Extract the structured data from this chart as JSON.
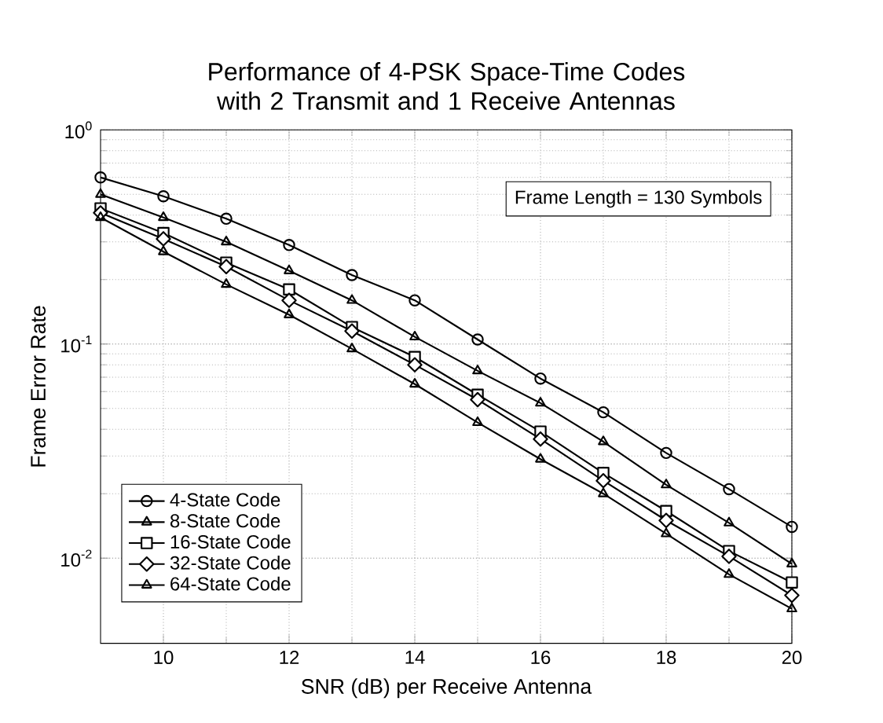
{
  "chart_data": {
    "type": "line",
    "title": "Performance of 4-PSK Space-Time Codes with 2 Transmit and 1 Receive Antennas",
    "xlabel": "SNR (dB) per Receive Antenna",
    "ylabel": "Frame Error Rate",
    "x": [
      9,
      10,
      11,
      12,
      13,
      14,
      15,
      16,
      17,
      18,
      19,
      20
    ],
    "series": [
      {
        "name": "4-State Code",
        "color": "#000000",
        "marker": "circle",
        "values": [
          0.6,
          0.49,
          0.385,
          0.29,
          0.21,
          0.16,
          0.105,
          0.069,
          0.048,
          0.031,
          0.021,
          0.014
        ]
      },
      {
        "name": "8-State Code",
        "color": "#000000",
        "marker": "triangle",
        "values": [
          0.5,
          0.39,
          0.3,
          0.22,
          0.16,
          0.108,
          0.075,
          0.053,
          0.035,
          0.022,
          0.0146,
          0.0094
        ]
      },
      {
        "name": "16-State Code",
        "color": "#000000",
        "marker": "square",
        "values": [
          0.43,
          0.33,
          0.24,
          0.18,
          0.12,
          0.087,
          0.058,
          0.039,
          0.025,
          0.0166,
          0.0108,
          0.0077
        ]
      },
      {
        "name": "32-State Code",
        "color": "#000000",
        "marker": "diamond",
        "values": [
          0.41,
          0.31,
          0.23,
          0.16,
          0.115,
          0.08,
          0.055,
          0.036,
          0.023,
          0.015,
          0.0102,
          0.0067
        ]
      },
      {
        "name": "64-State Code",
        "color": "#000000",
        "marker": "triangle",
        "values": [
          0.39,
          0.27,
          0.19,
          0.137,
          0.095,
          0.065,
          0.043,
          0.029,
          0.02,
          0.013,
          0.0084,
          0.0058
        ]
      }
    ],
    "log": "y",
    "xlim": [
      9,
      20
    ],
    "ylim": [
      0.004,
      1
    ],
    "xticks": [
      10,
      12,
      14,
      16,
      18,
      20
    ],
    "yticks": [
      {
        "value": 0.01,
        "label": "10$^{-2}$"
      },
      {
        "value": 0.1,
        "label": "10$^{-1}$"
      },
      {
        "value": 1,
        "label": "10$^{0}$"
      }
    ],
    "grid": true,
    "legend": "bottom left",
    "line_style": "solid",
    "annotations": [
      "Frame Length = 130 Symbols"
    ]
  }
}
